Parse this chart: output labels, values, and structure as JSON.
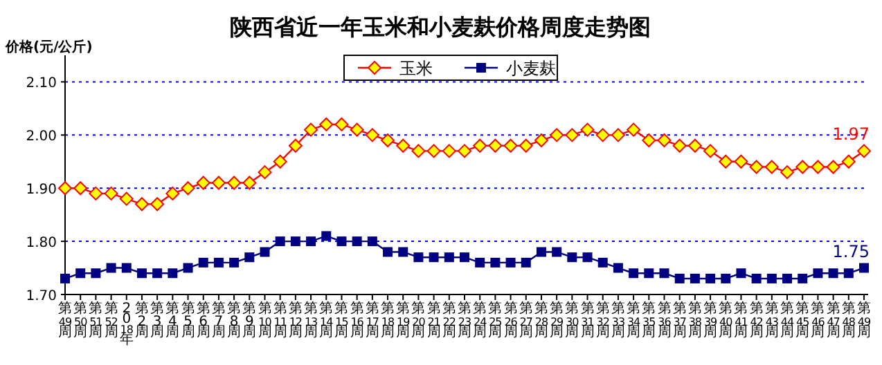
{
  "chart_data": {
    "type": "line",
    "title": "陕西省近一年玉米和小麦麸价格周度走势图",
    "ylabel": "价格(元/公斤)",
    "categories": [
      "第49周",
      "第50周",
      "第51周",
      "第52周",
      "2018年",
      "第2周",
      "第3周",
      "第4周",
      "第5周",
      "第6周",
      "第7周",
      "第8周",
      "第9周",
      "第10周",
      "第11周",
      "第12周",
      "第13周",
      "第14周",
      "第15周",
      "第16周",
      "第17周",
      "第18周",
      "第19周",
      "第20周",
      "第21周",
      "第22周",
      "第23周",
      "第24周",
      "第25周",
      "第26周",
      "第27周",
      "第28周",
      "第29周",
      "第30周",
      "第31周",
      "第32周",
      "第33周",
      "第34周",
      "第35周",
      "第36周",
      "第37周",
      "第38周",
      "第39周",
      "第40周",
      "第41周",
      "第42周",
      "第43周",
      "第44周",
      "第45周",
      "第46周",
      "第47周",
      "第48周",
      "第49周"
    ],
    "series": [
      {
        "name": "玉米",
        "color": "#ff0000",
        "marker": "diamond",
        "values": [
          1.9,
          1.9,
          1.89,
          1.89,
          1.88,
          1.87,
          1.87,
          1.89,
          1.9,
          1.91,
          1.91,
          1.91,
          1.91,
          1.93,
          1.95,
          1.98,
          2.01,
          2.02,
          2.02,
          2.01,
          2.0,
          1.99,
          1.98,
          1.97,
          1.97,
          1.97,
          1.97,
          1.98,
          1.98,
          1.98,
          1.98,
          1.99,
          2.0,
          2.0,
          2.01,
          2.0,
          2.0,
          2.01,
          1.99,
          1.99,
          1.98,
          1.98,
          1.97,
          1.95,
          1.95,
          1.94,
          1.94,
          1.93,
          1.94,
          1.94,
          1.94,
          1.95,
          1.97
        ],
        "value_labels": [
          null,
          null,
          null,
          null,
          null,
          null,
          null,
          null,
          null,
          null,
          null,
          null,
          null,
          null,
          null,
          null,
          null,
          null,
          null,
          null,
          null,
          null,
          null,
          null,
          null,
          null,
          null,
          null,
          null,
          null,
          null,
          null,
          null,
          null,
          null,
          null,
          null,
          null,
          null,
          null,
          null,
          null,
          null,
          null,
          null,
          null,
          null,
          null,
          null,
          null,
          null,
          null,
          "1.97"
        ]
      },
      {
        "name": "小麦麸",
        "color": "#000080",
        "marker": "square",
        "values": [
          1.73,
          1.74,
          1.74,
          1.75,
          1.75,
          1.74,
          1.74,
          1.74,
          1.75,
          1.76,
          1.76,
          1.76,
          1.77,
          1.78,
          1.8,
          1.8,
          1.8,
          1.81,
          1.8,
          1.8,
          1.8,
          1.78,
          1.78,
          1.77,
          1.77,
          1.77,
          1.77,
          1.76,
          1.76,
          1.76,
          1.76,
          1.78,
          1.78,
          1.77,
          1.77,
          1.76,
          1.75,
          1.74,
          1.74,
          1.74,
          1.73,
          1.73,
          1.73,
          1.73,
          1.74,
          1.73,
          1.73,
          1.73,
          1.73,
          1.74,
          1.74,
          1.74,
          1.75
        ],
        "value_labels": [
          null,
          null,
          null,
          null,
          null,
          null,
          null,
          null,
          null,
          null,
          null,
          null,
          null,
          null,
          null,
          null,
          null,
          null,
          null,
          null,
          null,
          null,
          null,
          null,
          null,
          null,
          null,
          null,
          null,
          null,
          null,
          null,
          null,
          null,
          null,
          null,
          null,
          null,
          null,
          null,
          null,
          null,
          null,
          null,
          null,
          null,
          null,
          null,
          null,
          null,
          null,
          null,
          "1.75"
        ]
      }
    ],
    "ylim": [
      1.7,
      2.15
    ],
    "yticks": [
      {
        "value": 1.7,
        "label": "1.70"
      },
      {
        "value": 1.8,
        "label": "1.80"
      },
      {
        "value": 1.9,
        "label": "1.90"
      },
      {
        "value": 2.0,
        "label": "2.00"
      },
      {
        "value": 2.1,
        "label": "2.10"
      }
    ],
    "grid": "y",
    "legend": "top"
  }
}
